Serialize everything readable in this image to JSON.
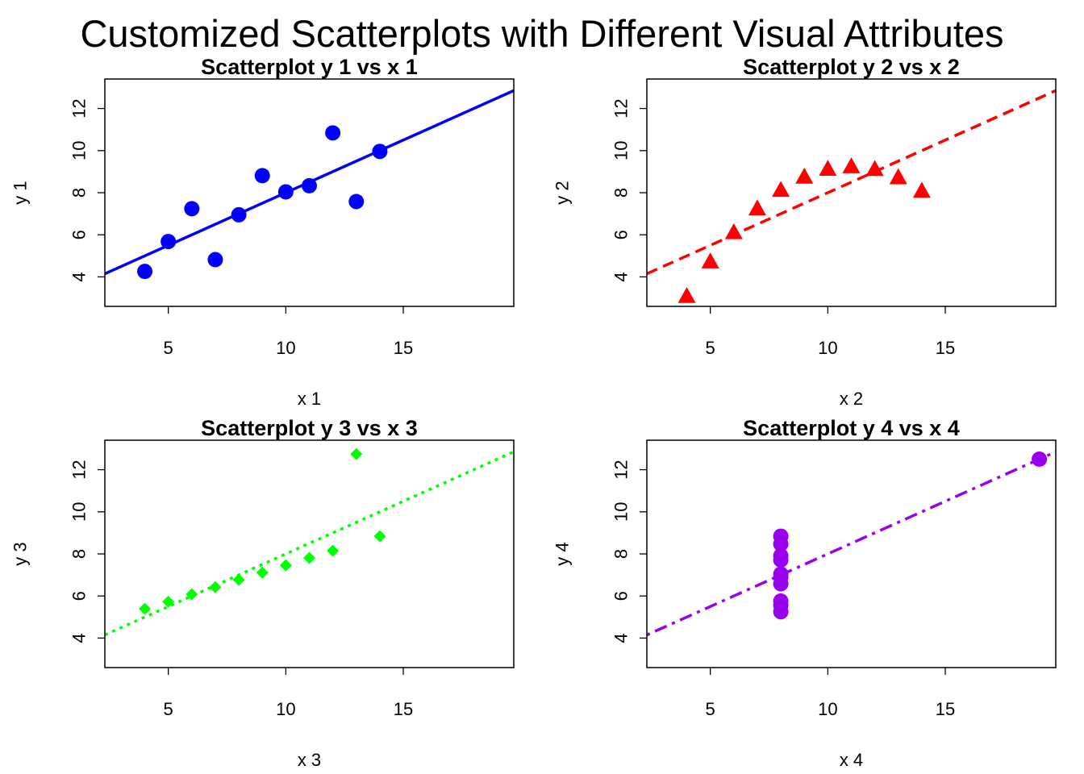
{
  "title": "Customized Scatterplots with Different Visual Attributes",
  "chart_data": [
    {
      "type": "scatter",
      "title": "Scatterplot y 1  vs x 1",
      "xlabel": "x 1",
      "ylabel": "y 1",
      "xlim": [
        2.3,
        19.7
      ],
      "ylim": [
        2.6,
        13.4
      ],
      "xticks": [
        "5",
        "10",
        "15"
      ],
      "yticks": [
        "4",
        "6",
        "8",
        "10",
        "12"
      ],
      "grid": false,
      "color": "#0000ff",
      "marker": "filled-circle",
      "line_style": "solid",
      "x": [
        4,
        5,
        6,
        7,
        8,
        9,
        10,
        11,
        12,
        13,
        14
      ],
      "y": [
        4.26,
        5.68,
        7.24,
        4.82,
        6.95,
        8.81,
        8.04,
        8.33,
        10.84,
        7.58,
        9.96
      ],
      "fit_line": {
        "intercept": 3.0,
        "slope": 0.5
      }
    },
    {
      "type": "scatter",
      "title": "Scatterplot y 2  vs x 2",
      "xlabel": "x 2",
      "ylabel": "y 2",
      "xlim": [
        2.3,
        19.7
      ],
      "ylim": [
        2.6,
        13.4
      ],
      "xticks": [
        "5",
        "10",
        "15"
      ],
      "yticks": [
        "4",
        "6",
        "8",
        "10",
        "12"
      ],
      "grid": false,
      "color": "#ff0000",
      "marker": "filled-triangle",
      "line_style": "dashed",
      "x": [
        4,
        5,
        6,
        7,
        8,
        9,
        10,
        11,
        12,
        13,
        14
      ],
      "y": [
        3.1,
        4.74,
        6.13,
        7.26,
        8.14,
        8.77,
        9.14,
        9.26,
        9.13,
        8.74,
        8.1
      ],
      "fit_line": {
        "intercept": 3.0,
        "slope": 0.5
      }
    },
    {
      "type": "scatter",
      "title": "Scatterplot y 3  vs x 3",
      "xlabel": "x 3",
      "ylabel": "y 3",
      "xlim": [
        2.3,
        19.7
      ],
      "ylim": [
        2.6,
        13.4
      ],
      "xticks": [
        "5",
        "10",
        "15"
      ],
      "yticks": [
        "4",
        "6",
        "8",
        "10",
        "12"
      ],
      "grid": false,
      "color": "#00ff00",
      "marker": "filled-diamond",
      "line_style": "dotted",
      "x": [
        4,
        5,
        6,
        7,
        8,
        9,
        10,
        11,
        12,
        13,
        14
      ],
      "y": [
        5.39,
        5.73,
        6.08,
        6.42,
        6.77,
        7.11,
        7.46,
        7.81,
        8.15,
        12.74,
        8.84
      ],
      "fit_line": {
        "intercept": 3.0,
        "slope": 0.5
      }
    },
    {
      "type": "scatter",
      "title": "Scatterplot y 4  vs x 4",
      "xlabel": "x 4",
      "ylabel": "y 4",
      "xlim": [
        2.3,
        19.7
      ],
      "ylim": [
        2.6,
        13.4
      ],
      "xticks": [
        "5",
        "10",
        "15"
      ],
      "yticks": [
        "4",
        "6",
        "8",
        "10",
        "12"
      ],
      "grid": false,
      "color": "#9900ee",
      "marker": "filled-circle",
      "line_style": "dotdash",
      "x": [
        8,
        8,
        8,
        8,
        8,
        8,
        8,
        19,
        8,
        8,
        8
      ],
      "y": [
        6.58,
        5.76,
        7.71,
        8.84,
        8.47,
        7.04,
        5.25,
        12.5,
        5.56,
        7.91,
        6.89
      ],
      "fit_line": {
        "intercept": 3.0,
        "slope": 0.5
      }
    }
  ]
}
